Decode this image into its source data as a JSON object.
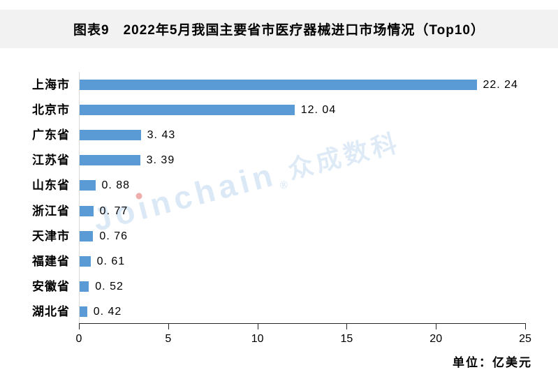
{
  "header": {
    "title": "图表9　2022年5月我国主要省市医疗器械进口市场情况（Top10）"
  },
  "chart_data": {
    "type": "bar",
    "orientation": "horizontal",
    "title": "图表9　2022年5月我国主要省市医疗器械进口市场情况（Top10）",
    "categories": [
      "上海市",
      "北京市",
      "广东省",
      "江苏省",
      "山东省",
      "浙江省",
      "天津市",
      "福建省",
      "安徽省",
      "湖北省"
    ],
    "values": [
      22.24,
      12.04,
      3.43,
      3.39,
      0.88,
      0.77,
      0.76,
      0.61,
      0.52,
      0.42
    ],
    "value_labels": [
      "22. 24",
      "12. 04",
      "3. 43",
      "3. 39",
      "0. 88",
      "0. 77",
      "0. 76",
      "0. 61",
      "0. 52",
      "0. 42"
    ],
    "x_ticks": [
      0,
      5,
      10,
      15,
      20,
      25
    ],
    "xlim": [
      0,
      25
    ],
    "xlabel": "",
    "ylabel": "",
    "unit_label": "单位：亿美元",
    "bar_color": "#5b9bd5",
    "grid": false,
    "legend": false
  },
  "watermark": {
    "latin_pre": "Jo",
    "latin_i": "ı",
    "latin_post": "nchain",
    "reg": "®",
    "cn": "众成数科",
    "color": "#dce9f6",
    "dot_color": "#eda9ad"
  }
}
